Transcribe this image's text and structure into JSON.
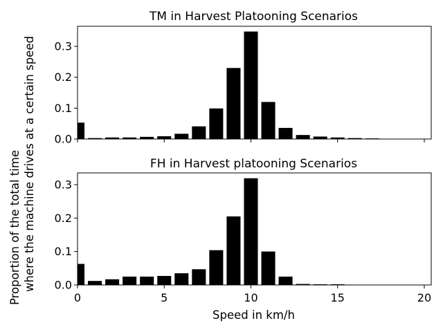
{
  "chart_data": [
    {
      "type": "bar",
      "title": "TM in Harvest Platooning Scenarios",
      "x": [
        0,
        1,
        2,
        3,
        4,
        5,
        6,
        7,
        8,
        9,
        10,
        11,
        12,
        13,
        14,
        15,
        16,
        17,
        18,
        19,
        20
      ],
      "values": [
        0.053,
        0.003,
        0.005,
        0.005,
        0.007,
        0.009,
        0.017,
        0.041,
        0.099,
        0.23,
        0.348,
        0.12,
        0.036,
        0.013,
        0.008,
        0.005,
        0.003,
        0.002,
        0.001,
        0.0005,
        0.0005
      ],
      "xlim": [
        0,
        20.4
      ],
      "ylim": [
        0,
        0.365
      ],
      "yticks": [
        0.0,
        0.1,
        0.2,
        0.3
      ],
      "ytick_labels": [
        "0.0",
        "0.1",
        "0.2",
        "0.3"
      ],
      "xtick_labels_shown": false,
      "color": "#000000"
    },
    {
      "type": "bar",
      "title": "FH in Harvest platooning Scenarios",
      "x": [
        0,
        1,
        2,
        3,
        4,
        5,
        6,
        7,
        8,
        9,
        10,
        11,
        12,
        13,
        14,
        15,
        16,
        17,
        18,
        19,
        20
      ],
      "values": [
        0.063,
        0.012,
        0.017,
        0.025,
        0.025,
        0.027,
        0.035,
        0.047,
        0.104,
        0.205,
        0.319,
        0.1,
        0.025,
        0.003,
        0.002,
        0.002,
        0.001,
        0.0,
        0.0,
        0.0,
        0.0
      ],
      "xlim": [
        0,
        20.4
      ],
      "ylim": [
        0,
        0.335
      ],
      "xticks": [
        0,
        5,
        10,
        15,
        20
      ],
      "xtick_labels": [
        "0",
        "5",
        "10",
        "15",
        "20"
      ],
      "yticks": [
        0.0,
        0.1,
        0.2,
        0.3
      ],
      "ytick_labels": [
        "0.0",
        "0.1",
        "0.2",
        "0.3"
      ],
      "color": "#000000"
    }
  ],
  "shared": {
    "xlabel": "Speed in km/h",
    "ylabel_line1": "Proportion of the total time",
    "ylabel_line2": "where the machine drives at a certain speed"
  }
}
